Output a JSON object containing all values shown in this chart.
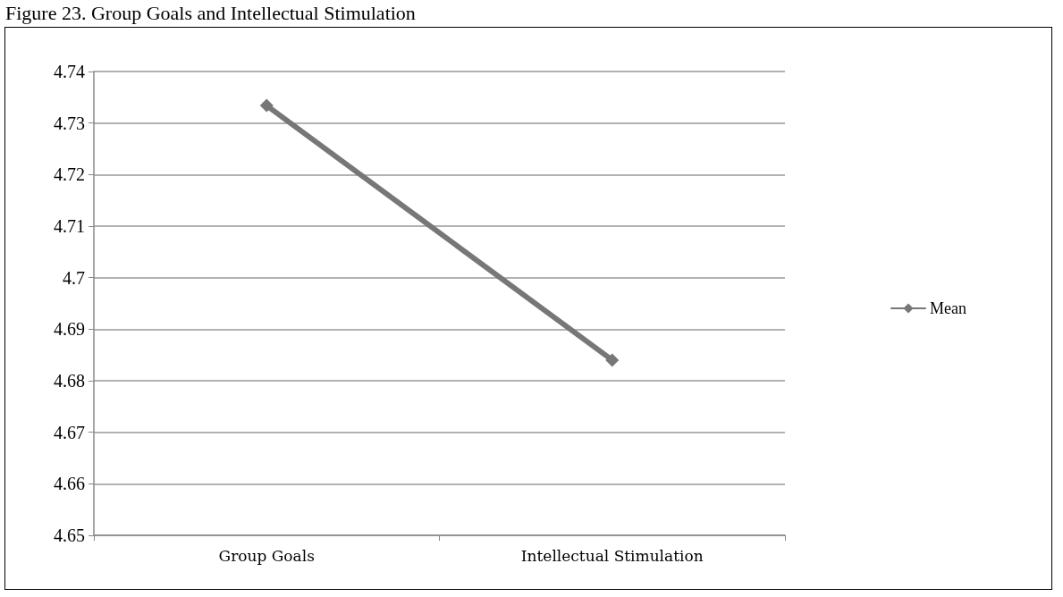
{
  "chart_data": {
    "type": "line",
    "title": "Figure 23. Group Goals and Intellectual Stimulation",
    "categories": [
      "Group Goals",
      "Intellectual Stimulation"
    ],
    "series": [
      {
        "name": "Mean",
        "color": "#777777",
        "values": [
          4.7334,
          4.684
        ]
      }
    ],
    "ylim": [
      4.65,
      4.74
    ],
    "yticks": [
      4.65,
      4.66,
      4.67,
      4.68,
      4.69,
      4.7,
      4.71,
      4.72,
      4.73,
      4.74
    ],
    "grid": "y",
    "legend": "right",
    "marker": "diamond",
    "line_style": "solid"
  }
}
